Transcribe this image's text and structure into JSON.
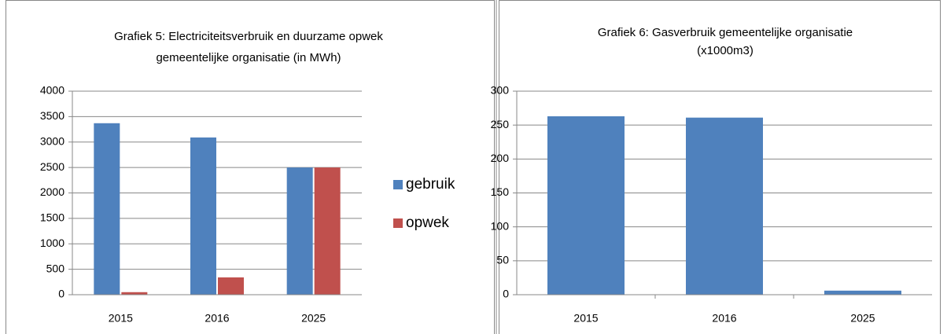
{
  "chart_data": [
    {
      "type": "bar",
      "title": "Grafiek 5: Electriciteitsverbruik en duurzame opwek gemeentelijke organisatie (in MWh)",
      "categories": [
        "2015",
        "2016",
        "2025"
      ],
      "series": [
        {
          "name": "gebruik",
          "color": "#4f81bd",
          "values": [
            3370,
            3090,
            2500
          ]
        },
        {
          "name": "opwek",
          "color": "#c0504d",
          "values": [
            50,
            340,
            2500
          ]
        }
      ],
      "ylim": [
        0,
        4000
      ],
      "yticks": [
        0,
        500,
        1000,
        1500,
        2000,
        2500,
        3000,
        3500,
        4000
      ],
      "grid": true,
      "legend": "right"
    },
    {
      "type": "bar",
      "title": "Grafiek 6: Gasverbruik gemeentelijke organisatie (x1000m3)",
      "categories": [
        "2015",
        "2016",
        "2025"
      ],
      "values": [
        263,
        261,
        6
      ],
      "color": "#4f81bd",
      "ylim": [
        0,
        300
      ],
      "yticks": [
        0,
        50,
        100,
        150,
        200,
        250,
        300
      ],
      "grid": true
    }
  ]
}
